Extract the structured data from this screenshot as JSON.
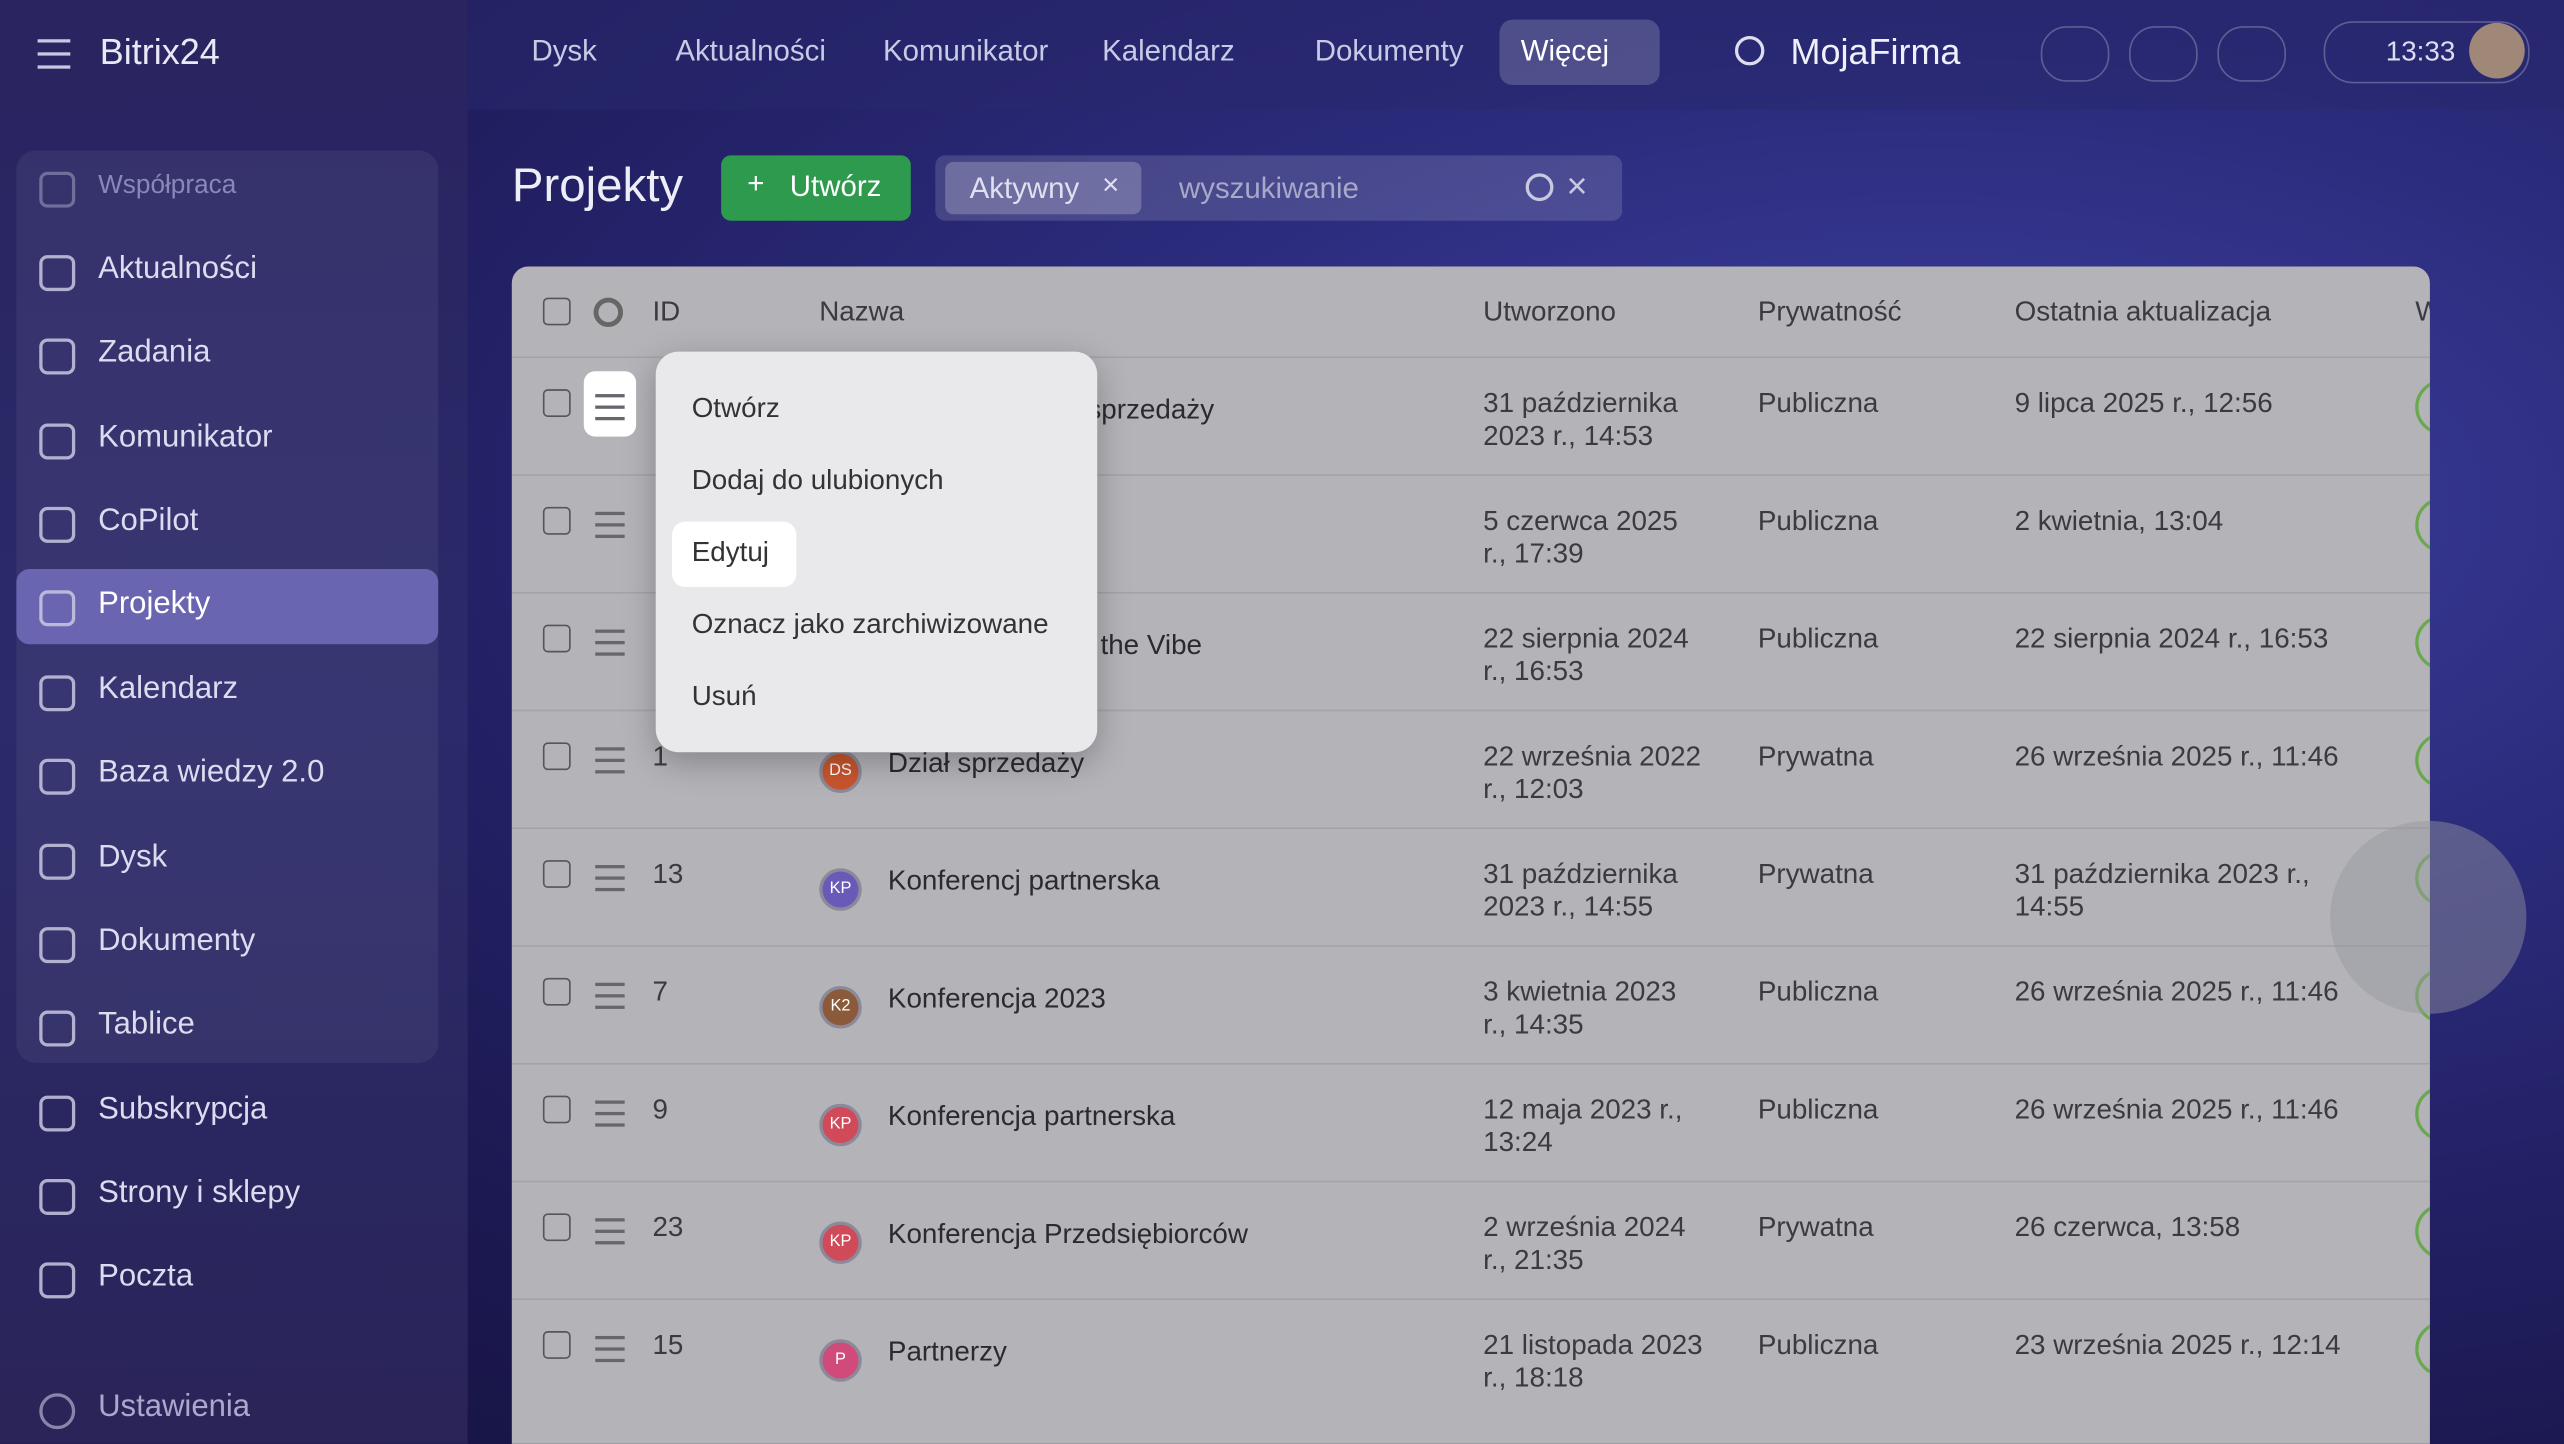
{
  "topbar": {
    "logo": "Bitrix24",
    "nav": [
      "Dysk",
      "Aktualności",
      "Komunikator",
      "Kalendarz",
      "Dokumenty",
      "Więcej"
    ],
    "company": "MojaFirma",
    "time": "13:33"
  },
  "sidebar": {
    "group": "Współpraca",
    "items": [
      "Aktualności",
      "Zadania",
      "Komunikator",
      "CoPilot",
      "Projekty",
      "Kalendarz",
      "Baza wiedzy 2.0",
      "Dysk",
      "Dokumenty",
      "Tablice",
      "Subskrypcja",
      "Strony i sklepy",
      "Poczta"
    ],
    "settings": "Ustawienia"
  },
  "header": {
    "title": "Projekty",
    "create": "Utwórz",
    "filter": "Aktywny",
    "search_placeholder": "wyszukiwanie"
  },
  "table": {
    "columns": [
      "ID",
      "Nazwa",
      "Utworzono",
      "Prywatność",
      "Ostatnia aktualizacja",
      "W"
    ],
    "rows": [
      {
        "name": "sprzedaży",
        "created": "31 października 2023 r., 14:53",
        "privacy": "Publiczna",
        "updated": "9 lipca 2025 r., 12:56"
      },
      {
        "created": "5 czerwca 2025 r., 17:39",
        "privacy": "Publiczna",
        "updated": "2 kwietnia, 13:04"
      },
      {
        "name": "the Vibe",
        "created": "22 sierpnia 2024 r., 16:53",
        "privacy": "Publiczna",
        "updated": "22 sierpnia 2024 r., 16:53"
      },
      {
        "id": "1",
        "badge": "DS",
        "name": "Dział sprzedaży",
        "created": "22 września 2022 r., 12:03",
        "privacy": "Prywatna",
        "updated": "26 września 2025 r., 11:46"
      },
      {
        "id": "13",
        "badge": "KP",
        "name": "Konferencj partnerska",
        "created": "31 października 2023 r., 14:55",
        "privacy": "Prywatna",
        "updated": "31 października 2023 r., 14:55"
      },
      {
        "id": "7",
        "badge": "K2",
        "name": "Konferencja 2023",
        "created": "3 kwietnia 2023 r., 14:35",
        "privacy": "Publiczna",
        "updated": "26 września 2025 r., 11:46"
      },
      {
        "id": "9",
        "badge": "KP",
        "name": "Konferencja partnerska",
        "created": "12 maja 2023 r., 13:24",
        "privacy": "Publiczna",
        "updated": "26 września 2025 r., 11:46"
      },
      {
        "id": "23",
        "badge": "KP",
        "name": "Konferencja Przedsiębiorców",
        "created": "2 września 2024 r., 21:35",
        "privacy": "Prywatna",
        "updated": "26 czerwca, 13:58"
      },
      {
        "id": "15",
        "badge": "P",
        "name": "Partnerzy",
        "created": "21 listopada 2023 r., 18:18",
        "privacy": "Publiczna",
        "updated": "23 września 2025 r., 12:14"
      }
    ]
  },
  "context_menu": {
    "items": [
      "Otwórz",
      "Dodaj do ulubionych",
      "Edytuj",
      "Oznacz jako zarchiwizowane",
      "Usuń"
    ]
  }
}
